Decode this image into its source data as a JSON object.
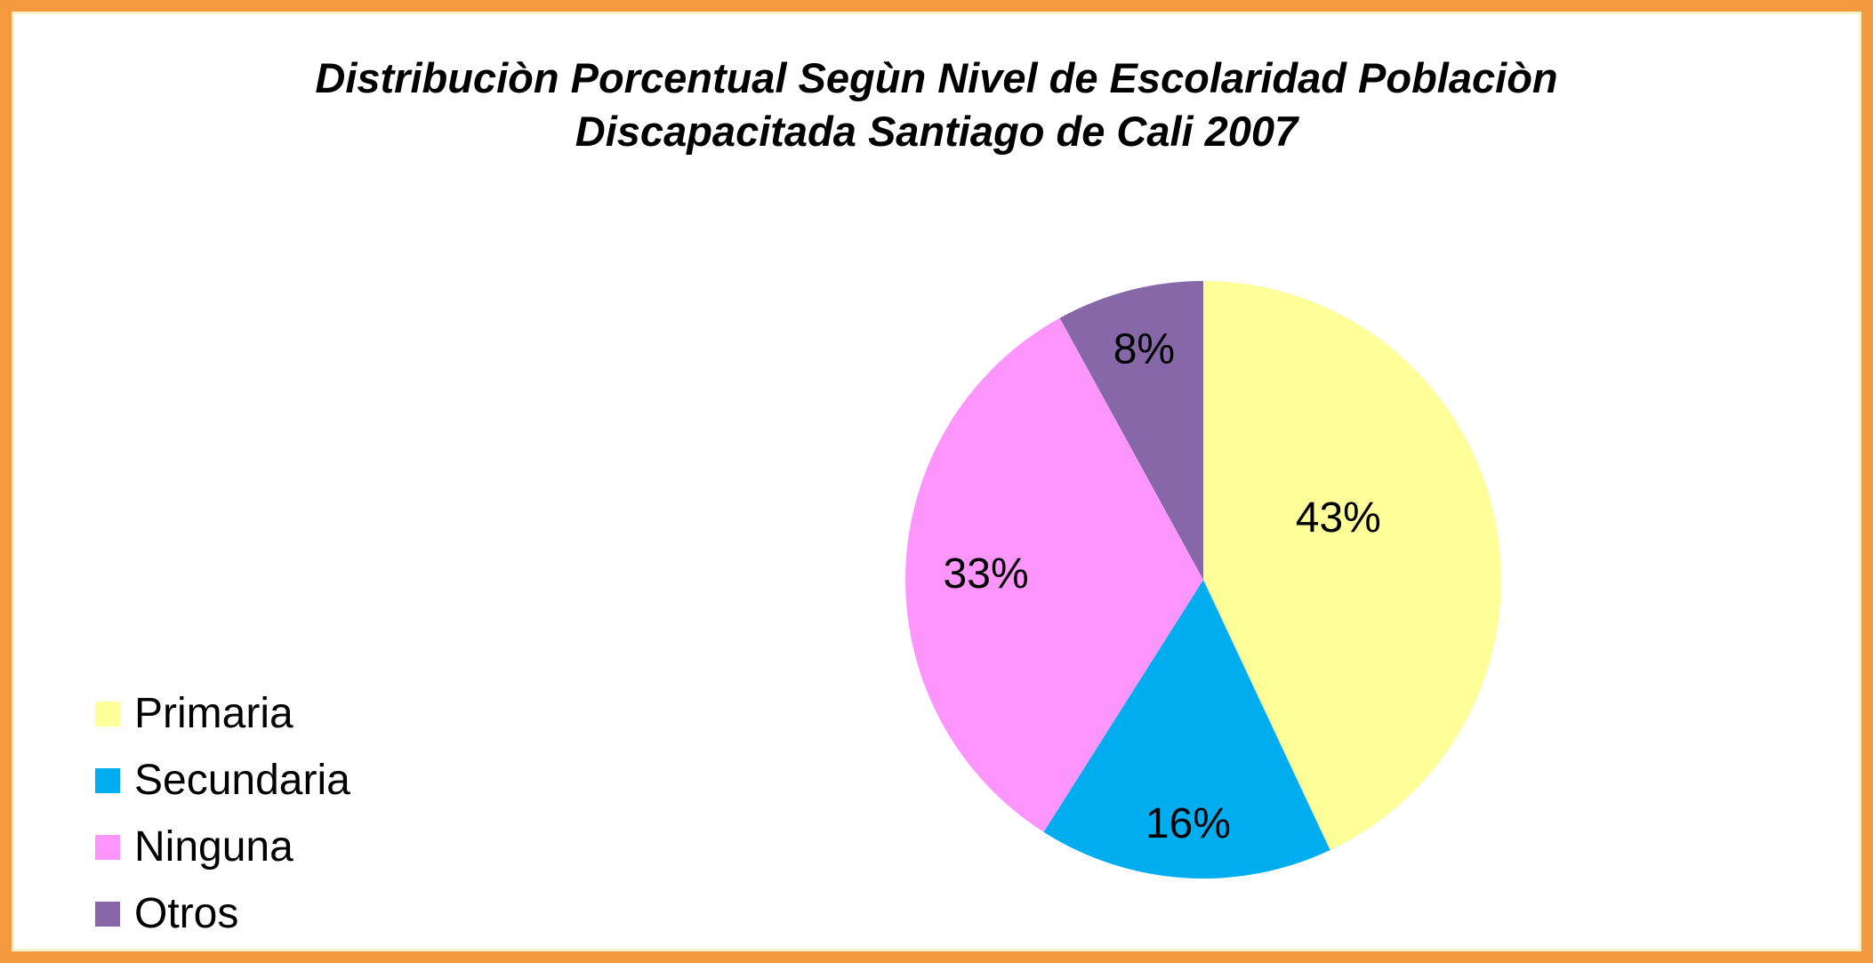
{
  "window": {
    "background_color": "#FFFFFF",
    "border_color": "#F5993F"
  },
  "chart_data": {
    "type": "pie",
    "title": "Distribuciòn Porcentual Segùn Nivel de Escolaridad Poblaciòn Discapacitada Santiago de Cali 2007",
    "title_lines": [
      "Distribuciòn Porcentual Segùn Nivel de Escolaridad Poblaciòn",
      "Discapacitada Santiago de Cali 2007"
    ],
    "categories": [
      "Primaria",
      "Secundaria",
      "Ninguna",
      "Otros"
    ],
    "values": [
      43,
      16,
      33,
      8
    ],
    "labels": [
      "43%",
      "16%",
      "33%",
      "8%"
    ],
    "colors": [
      "#FFFF99",
      "#00AEEF",
      "#FC96FC",
      "#8668A8"
    ],
    "label_color": "#000000",
    "legend_position": "bottom-left",
    "start_angle_deg": 0,
    "direction": "clockwise",
    "label_hints": [
      {
        "angle_deg": 65,
        "r": 0.5
      },
      {
        "r": 0.815
      },
      {
        "r": 0.73
      },
      {
        "r": 0.8
      }
    ]
  }
}
